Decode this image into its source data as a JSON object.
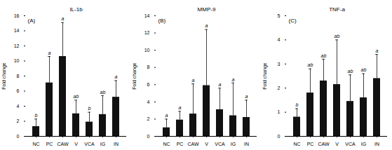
{
  "chart_data": [
    {
      "type": "bar",
      "title": "IL-1b",
      "label": "(A)",
      "categories": [
        "NC",
        "PC",
        "CAW",
        "V",
        "VCA",
        "IG",
        "IN"
      ],
      "values": [
        1.3,
        7.1,
        10.6,
        3.0,
        1.9,
        2.9,
        5.2
      ],
      "errors": [
        1.0,
        3.5,
        4.5,
        1.8,
        1.3,
        2.5,
        2.2
      ],
      "annotations": [
        "b",
        "a",
        "a",
        "ab",
        "b",
        "ab",
        "a"
      ],
      "ylabel": "Fold change",
      "color": "#111111",
      "ylim": [
        0,
        16
      ],
      "yticks": [
        0,
        2,
        4,
        6,
        8,
        10,
        12,
        14,
        16
      ]
    },
    {
      "type": "bar",
      "title": "MMP-9",
      "label": "(B)",
      "categories": [
        "NC",
        "PC",
        "CAW",
        "V",
        "VCA",
        "IG",
        "IN"
      ],
      "values": [
        1.0,
        1.9,
        2.6,
        5.9,
        3.1,
        2.4,
        2.2
      ],
      "errors": [
        1.0,
        1.0,
        3.5,
        6.5,
        2.5,
        3.8,
        2.0
      ],
      "annotations": [
        "a",
        "a",
        "a",
        "a",
        "a",
        "a",
        "a"
      ],
      "ylabel": "Fold change",
      "color": "#111111",
      "ylim": [
        0,
        14
      ],
      "yticks": [
        0,
        2,
        4,
        6,
        8,
        10,
        12,
        14
      ]
    },
    {
      "type": "bar",
      "title": "TNF-a",
      "label": "(C)",
      "categories": [
        "NC",
        "PC",
        "CAW",
        "V",
        "VCA",
        "IG",
        "IN"
      ],
      "values": [
        0.8,
        1.8,
        2.3,
        2.15,
        1.45,
        1.6,
        2.4
      ],
      "errors": [
        0.35,
        1.0,
        0.9,
        1.85,
        1.1,
        1.0,
        1.0
      ],
      "annotations": [
        "b",
        "ab",
        "ab",
        "ab",
        "ab",
        "ab",
        "a"
      ],
      "ylabel": "Fold change",
      "color": "#111111",
      "ylim": [
        0,
        5
      ],
      "yticks": [
        0,
        1,
        2,
        3,
        4,
        5
      ]
    }
  ]
}
